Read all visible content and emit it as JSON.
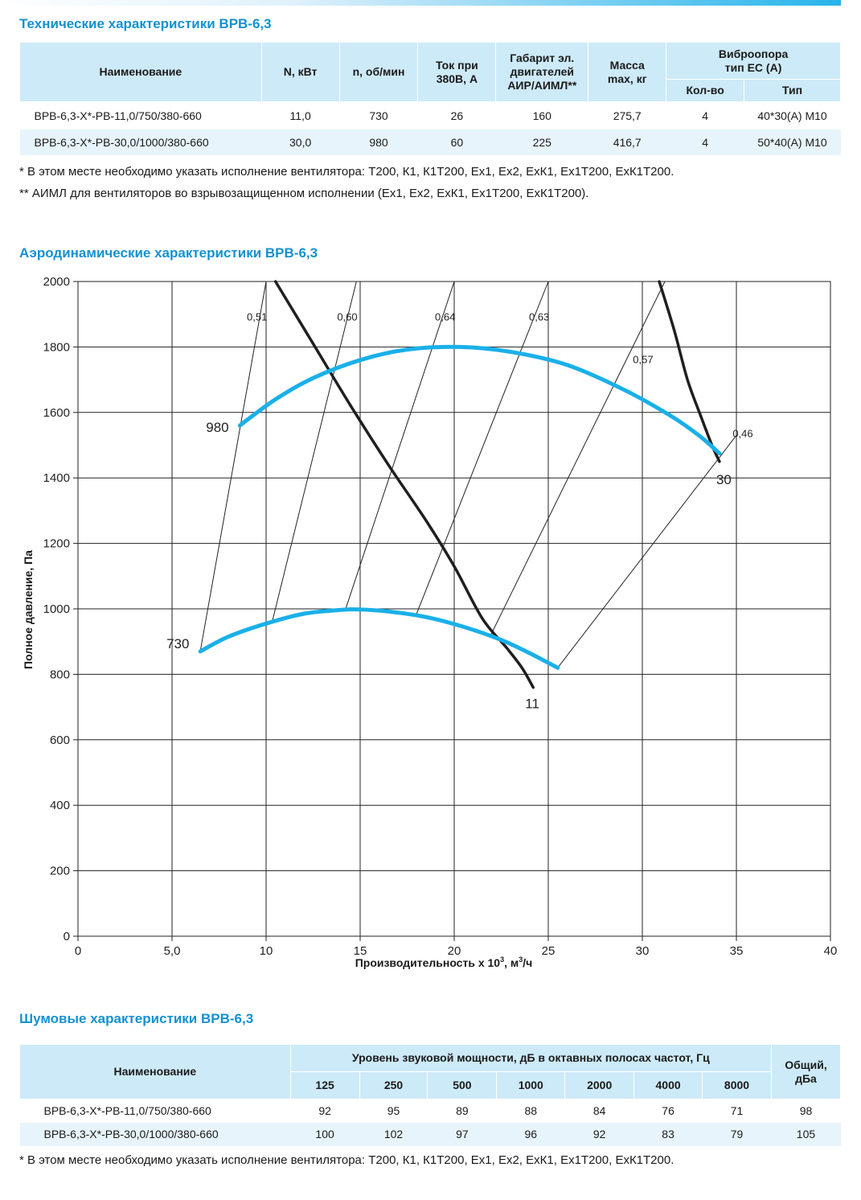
{
  "tech": {
    "title": "Технические характеристики ВРВ-6,3",
    "headers": {
      "name": "Наименование",
      "power": "N, кВт",
      "speed": "n, об/мин",
      "current_l1": "Ток при",
      "current_l2": "380В, А",
      "motor_l1": "Габарит эл.",
      "motor_l2": "двигателей",
      "motor_l3": "АИР/АИМЛ**",
      "mass_l1": "Масса",
      "mass_l2": "max, кг",
      "vibro_l1": "Виброопора",
      "vibro_l2": "тип ЕС (А)",
      "qty": "Кол-во",
      "type": "Тип"
    },
    "rows": [
      {
        "name": "ВРВ-6,3-Х*-РВ-11,0/750/380-660",
        "power": "11,0",
        "speed": "730",
        "current": "26",
        "motor": "160",
        "mass": "275,7",
        "qty": "4",
        "type": "40*30(А) М10"
      },
      {
        "name": "ВРВ-6,3-Х*-РВ-30,0/1000/380-660",
        "power": "30,0",
        "speed": "980",
        "current": "60",
        "motor": "225",
        "mass": "416,7",
        "qty": "4",
        "type": "50*40(А) М10"
      }
    ],
    "note1": "* В этом месте необходимо указать исполнение вентилятора: Т200, К1, К1Т200, Ех1, Ех2, ЕхК1, Ех1Т200, ЕхК1Т200.",
    "note2": "** АИМЛ для вентиляторов во взрывозащищенном исполнении (Ех1, Ех2, ЕхК1, Ех1Т200, ЕхК1Т200)."
  },
  "aero": {
    "title": "Аэродинамические характеристики ВРВ-6,3"
  },
  "chart_data": {
    "type": "line",
    "xlabel_main": "Производительность х 10",
    "xlabel_sup": "3",
    "xlabel_end": ", м",
    "xlabel_sup2": "3",
    "xlabel_tail": "/ч",
    "ylabel": "Полное давление, Па",
    "xlim": [
      0,
      40
    ],
    "ylim": [
      0,
      2000
    ],
    "grid": true,
    "x_ticks": [
      0,
      5,
      10,
      15,
      20,
      25,
      30,
      35,
      40
    ],
    "x_tick_labels": [
      "0",
      "5,0",
      "10",
      "15",
      "20",
      "25",
      "30",
      "35",
      "40"
    ],
    "y_ticks": [
      0,
      200,
      400,
      600,
      800,
      1000,
      1200,
      1400,
      1600,
      1800,
      2000
    ],
    "y_tick_labels": [
      "0",
      "200",
      "400",
      "600",
      "800",
      "1000",
      "1200",
      "1400",
      "1600",
      "1800",
      "2000"
    ],
    "series": [
      {
        "name": "730",
        "color": "#1ab0e8",
        "x": [
          6.5,
          8.0,
          10.0,
          12.0,
          14.0,
          15.0,
          16.5,
          18.5,
          20.5,
          22.5,
          24.0,
          25.5
        ],
        "y": [
          870,
          915,
          955,
          985,
          997,
          998,
          992,
          975,
          945,
          905,
          865,
          820
        ]
      },
      {
        "name": "980",
        "color": "#1ab0e8",
        "x": [
          8.6,
          10.5,
          12.5,
          15.0,
          17.5,
          20.3,
          23.0,
          26.0,
          29.0,
          31.5,
          33.0,
          34.1
        ],
        "y": [
          1560,
          1640,
          1705,
          1760,
          1792,
          1800,
          1785,
          1745,
          1670,
          1590,
          1530,
          1475
        ]
      }
    ],
    "power_curves": [
      {
        "name": "11",
        "color": "#1f1f1f",
        "x": [
          10.5,
          12.5,
          14.5,
          16.5,
          18.5,
          20.0,
          21.5,
          22.8,
          23.6,
          24.2
        ],
        "y": [
          2000,
          1810,
          1620,
          1440,
          1270,
          1130,
          970,
          880,
          820,
          760
        ]
      },
      {
        "name": "30",
        "color": "#1f1f1f",
        "x": [
          30.9,
          31.7,
          32.4,
          33.1,
          33.7,
          34.1
        ],
        "y": [
          2000,
          1850,
          1700,
          1590,
          1500,
          1450
        ]
      }
    ],
    "efficiency_lines": [
      {
        "label": "0,51",
        "x": [
          6.5,
          10.0
        ],
        "y": [
          870,
          2000
        ]
      },
      {
        "label": "0,60",
        "x": [
          10.3,
          14.8
        ],
        "y": [
          955,
          2000
        ]
      },
      {
        "label": "0,64",
        "x": [
          14.2,
          20.0
        ],
        "y": [
          995,
          2000
        ]
      },
      {
        "label": "0,63",
        "x": [
          18.0,
          25.0
        ],
        "y": [
          985,
          2000
        ]
      },
      {
        "label": "0,57",
        "x": [
          21.9,
          31.2
        ],
        "y": [
          915,
          2000
        ]
      },
      {
        "label": "0,46",
        "x": [
          25.5,
          35.0
        ],
        "y": [
          820,
          1530
        ]
      }
    ],
    "curve_labels": {
      "s730": "730",
      "s980": "980",
      "p11": "11",
      "p30": "30"
    }
  },
  "noise": {
    "title": "Шумовые характеристики ВРВ-6,3",
    "header_name": "Наименование",
    "header_level": "Уровень звуковой мощности, дБ в октавных полосах частот, Гц",
    "header_total_l1": "Общий,",
    "header_total_l2": "дБа",
    "bands": [
      "125",
      "250",
      "500",
      "1000",
      "2000",
      "4000",
      "8000"
    ],
    "rows": [
      {
        "name": "ВРВ-6,3-Х*-РВ-11,0/750/380-660",
        "values": [
          "92",
          "95",
          "89",
          "88",
          "84",
          "76",
          "71"
        ],
        "total": "98"
      },
      {
        "name": "ВРВ-6,3-Х*-РВ-30,0/1000/380-660",
        "values": [
          "100",
          "102",
          "97",
          "96",
          "92",
          "83",
          "79"
        ],
        "total": "105"
      }
    ],
    "note": "* В этом месте необходимо указать исполнение вентилятора: Т200, К1, К1Т200, Ех1, Ех2, ЕхК1, Ех1Т200, ЕхК1Т200."
  }
}
